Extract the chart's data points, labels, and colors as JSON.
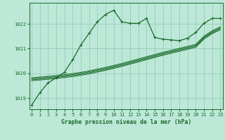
{
  "title": "Graphe pression niveau de la mer (hPa)",
  "bg_color": "#bde8d8",
  "grid_color": "#96ccbb",
  "line_color": "#1a6b2a",
  "x_ticks": [
    0,
    1,
    2,
    3,
    4,
    5,
    6,
    7,
    8,
    9,
    10,
    11,
    12,
    13,
    14,
    15,
    16,
    17,
    18,
    19,
    20,
    21,
    22,
    23
  ],
  "y_ticks": [
    1019,
    1020,
    1021,
    1022
  ],
  "ylim": [
    1018.55,
    1022.85
  ],
  "xlim": [
    -0.3,
    23.3
  ],
  "series": [
    [
      1018.72,
      1019.22,
      1019.62,
      1019.82,
      1020.05,
      1020.55,
      1021.15,
      1021.62,
      1022.08,
      1022.38,
      1022.55,
      1022.08,
      1022.02,
      1022.02,
      1022.22,
      1021.45,
      1021.38,
      1021.35,
      1021.32,
      1021.42,
      1021.65,
      1022.02,
      1022.22,
      1022.22
    ],
    [
      1019.82,
      1019.85,
      1019.88,
      1019.91,
      1019.95,
      1019.99,
      1020.04,
      1020.1,
      1020.17,
      1020.24,
      1020.32,
      1020.4,
      1020.49,
      1020.58,
      1020.67,
      1020.76,
      1020.85,
      1020.93,
      1021.01,
      1021.09,
      1021.17,
      1021.5,
      1021.72,
      1021.88
    ],
    [
      1019.78,
      1019.81,
      1019.84,
      1019.87,
      1019.91,
      1019.95,
      1020.0,
      1020.06,
      1020.13,
      1020.2,
      1020.28,
      1020.36,
      1020.45,
      1020.54,
      1020.63,
      1020.72,
      1020.81,
      1020.89,
      1020.97,
      1021.05,
      1021.13,
      1021.46,
      1021.68,
      1021.84
    ],
    [
      1019.74,
      1019.77,
      1019.8,
      1019.83,
      1019.87,
      1019.91,
      1019.96,
      1020.02,
      1020.09,
      1020.16,
      1020.24,
      1020.32,
      1020.41,
      1020.5,
      1020.59,
      1020.68,
      1020.77,
      1020.85,
      1020.93,
      1021.01,
      1021.09,
      1021.42,
      1021.64,
      1021.8
    ],
    [
      1019.7,
      1019.73,
      1019.76,
      1019.79,
      1019.83,
      1019.87,
      1019.92,
      1019.98,
      1020.05,
      1020.12,
      1020.2,
      1020.28,
      1020.37,
      1020.46,
      1020.55,
      1020.64,
      1020.73,
      1020.81,
      1020.89,
      1020.97,
      1021.05,
      1021.38,
      1021.6,
      1021.76
    ]
  ],
  "font_family": "monospace",
  "xlabel_fontsize": 5.8,
  "ytick_fontsize": 5.5,
  "xtick_fontsize": 4.8
}
